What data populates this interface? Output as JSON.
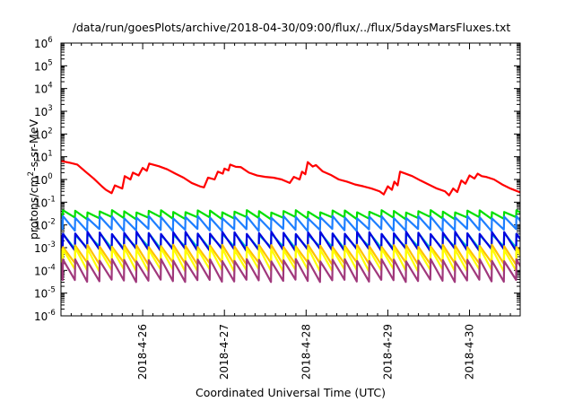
{
  "chart_data": {
    "type": "line",
    "title": "/data/run/goesPlots/archive/2018-04-30/09:00/flux/../flux/5daysMarsFluxes.txt",
    "xlabel": "Coordinated Universal Time (UTC)",
    "ylabel": {
      "pre": "protons/cm",
      "sup": "2",
      "post": "-s-sr-MeV"
    },
    "yscale": "log",
    "ylim_exponents": [
      -6,
      6
    ],
    "y_tick_base": "10",
    "y_tick_exponents": [
      "6",
      "5",
      "4",
      "3",
      "2",
      "1",
      "0",
      "-1",
      "-2",
      "-3",
      "-4",
      "-5",
      "-6"
    ],
    "xlim_days": [
      0.0,
      5.62
    ],
    "x_ticks": [
      {
        "label": "2018-4-26",
        "day": 1.0
      },
      {
        "label": "2018-4-27",
        "day": 2.0
      },
      {
        "label": "2018-4-28",
        "day": 3.0
      },
      {
        "label": "2018-4-29",
        "day": 4.0
      },
      {
        "label": "2018-4-30",
        "day": 5.0
      }
    ],
    "grid": false,
    "legend": "none",
    "series": [
      {
        "color": "#ff0000",
        "points": [
          [
            0.0,
            6.5
          ],
          [
            0.1,
            5.5
          ],
          [
            0.2,
            4.5
          ],
          [
            0.3,
            2.2
          ],
          [
            0.4,
            1.1
          ],
          [
            0.5,
            0.5
          ],
          [
            0.55,
            0.35
          ],
          [
            0.62,
            0.25
          ],
          [
            0.66,
            0.55
          ],
          [
            0.75,
            0.4
          ],
          [
            0.78,
            1.4
          ],
          [
            0.85,
            1.0
          ],
          [
            0.88,
            2.0
          ],
          [
            0.95,
            1.5
          ],
          [
            1.0,
            3.2
          ],
          [
            1.05,
            2.4
          ],
          [
            1.08,
            5.0
          ],
          [
            1.2,
            3.8
          ],
          [
            1.3,
            2.8
          ],
          [
            1.4,
            1.8
          ],
          [
            1.5,
            1.2
          ],
          [
            1.6,
            0.7
          ],
          [
            1.7,
            0.5
          ],
          [
            1.75,
            0.45
          ],
          [
            1.8,
            1.2
          ],
          [
            1.88,
            1.0
          ],
          [
            1.92,
            2.2
          ],
          [
            1.98,
            1.8
          ],
          [
            2.0,
            3.0
          ],
          [
            2.05,
            2.5
          ],
          [
            2.07,
            4.5
          ],
          [
            2.14,
            3.6
          ],
          [
            2.2,
            3.5
          ],
          [
            2.3,
            2.0
          ],
          [
            2.4,
            1.5
          ],
          [
            2.5,
            1.3
          ],
          [
            2.6,
            1.2
          ],
          [
            2.7,
            1.0
          ],
          [
            2.8,
            0.7
          ],
          [
            2.85,
            1.3
          ],
          [
            2.92,
            1.0
          ],
          [
            2.95,
            2.2
          ],
          [
            2.99,
            1.7
          ],
          [
            3.02,
            5.8
          ],
          [
            3.08,
            3.7
          ],
          [
            3.12,
            4.3
          ],
          [
            3.2,
            2.3
          ],
          [
            3.3,
            1.6
          ],
          [
            3.4,
            1.0
          ],
          [
            3.5,
            0.8
          ],
          [
            3.6,
            0.6
          ],
          [
            3.7,
            0.5
          ],
          [
            3.8,
            0.4
          ],
          [
            3.9,
            0.3
          ],
          [
            3.95,
            0.22
          ],
          [
            4.0,
            0.5
          ],
          [
            4.05,
            0.35
          ],
          [
            4.08,
            0.8
          ],
          [
            4.12,
            0.55
          ],
          [
            4.15,
            2.2
          ],
          [
            4.2,
            1.9
          ],
          [
            4.3,
            1.4
          ],
          [
            4.4,
            0.9
          ],
          [
            4.5,
            0.6
          ],
          [
            4.6,
            0.4
          ],
          [
            4.7,
            0.3
          ],
          [
            4.75,
            0.2
          ],
          [
            4.8,
            0.4
          ],
          [
            4.85,
            0.28
          ],
          [
            4.9,
            0.9
          ],
          [
            4.95,
            0.65
          ],
          [
            5.0,
            1.5
          ],
          [
            5.06,
            1.1
          ],
          [
            5.1,
            1.8
          ],
          [
            5.15,
            1.4
          ],
          [
            5.2,
            1.3
          ],
          [
            5.3,
            1.0
          ],
          [
            5.4,
            0.6
          ],
          [
            5.5,
            0.4
          ],
          [
            5.62,
            0.27
          ]
        ]
      },
      {
        "color": "#00e000",
        "sawtooth": {
          "period": 0.15,
          "phase": 0.02,
          "high": 0.04,
          "low": 0.02
        }
      },
      {
        "color": "#1e7fff",
        "sawtooth": {
          "period": 0.15,
          "phase": 0.02,
          "high": 0.022,
          "low": 0.006
        }
      },
      {
        "color": "#00c8c8",
        "sawtooth": {
          "period": 0.15,
          "phase": 0.02,
          "high": 0.004,
          "low": 0.001
        }
      },
      {
        "color": "#0000e0",
        "sawtooth": {
          "period": 0.15,
          "phase": 0.02,
          "high": 0.0045,
          "low": 0.0008
        }
      },
      {
        "color": "#ffc000",
        "sawtooth": {
          "period": 0.15,
          "phase": 0.02,
          "high": 0.0012,
          "low": 0.0002
        }
      },
      {
        "color": "#ffff00",
        "sawtooth": {
          "period": 0.15,
          "phase": 0.02,
          "high": 0.0009,
          "low": 0.0001
        }
      },
      {
        "color": "#a0387c",
        "sawtooth": {
          "period": 0.15,
          "phase": 0.02,
          "high": 0.00028,
          "low": 3.5e-05
        }
      }
    ]
  }
}
